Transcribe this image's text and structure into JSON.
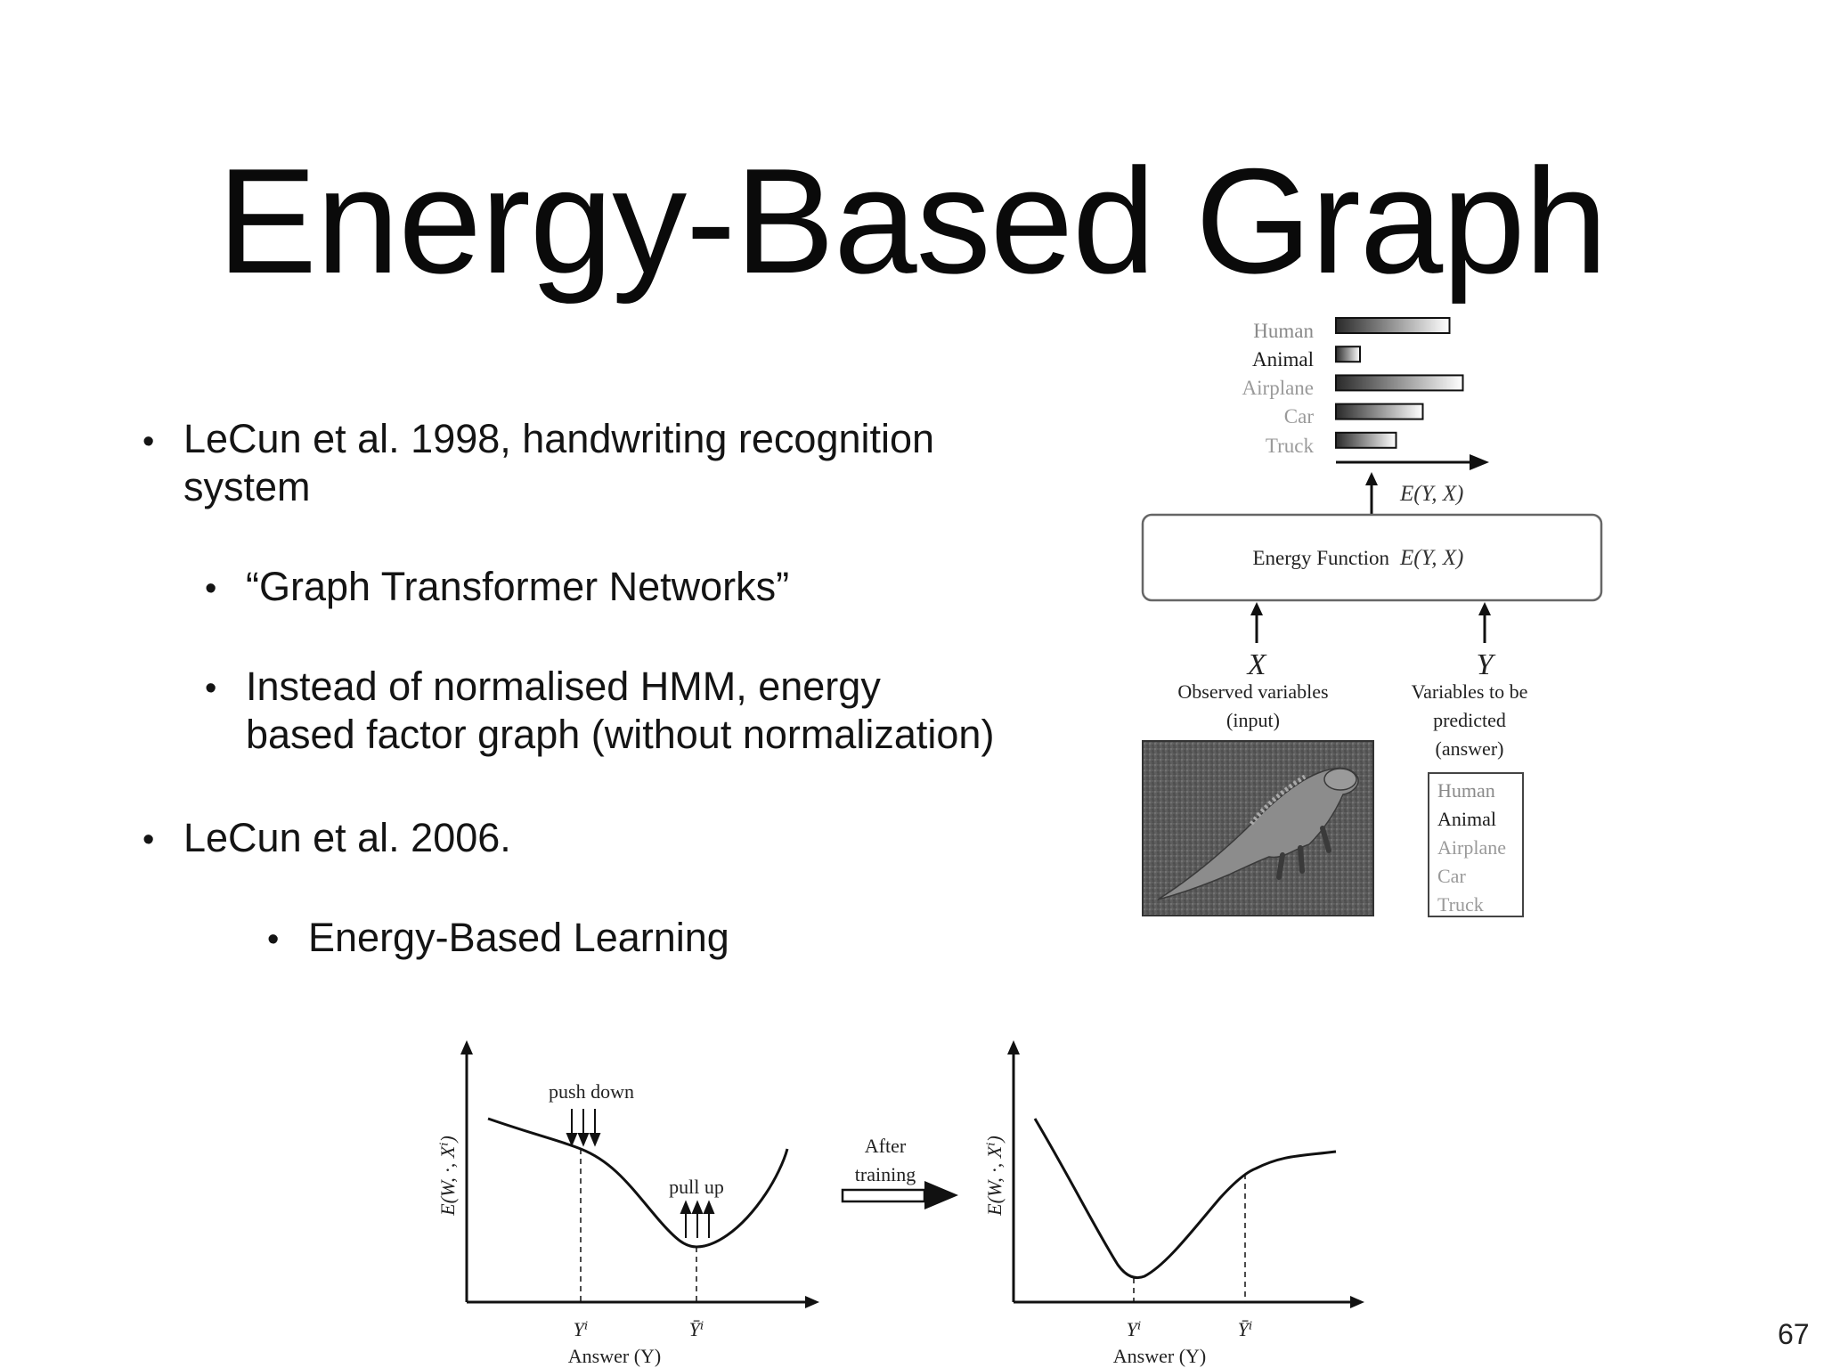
{
  "slide": {
    "title": "Energy-Based Graph",
    "page_number": "67"
  },
  "bullets": [
    {
      "level": 1,
      "lines": [
        "LeCun et al. 1998, handwriting recognition",
        "system"
      ]
    },
    {
      "level": 2,
      "lines": [
        "“Graph Transformer Networks”"
      ]
    },
    {
      "level": 2,
      "lines": [
        "Instead of normalised HMM, energy",
        "based factor graph (without normalization)"
      ]
    },
    {
      "level": 1,
      "lines": [
        "LeCun et al. 2006."
      ]
    },
    {
      "level": 3,
      "lines": [
        "Energy-Based Learning"
      ]
    }
  ],
  "diagram": {
    "bar_labels": [
      "Human",
      "Animal",
      "Airplane",
      "Car",
      "Truck"
    ],
    "bar_values": [
      0.85,
      0.18,
      0.95,
      0.65,
      0.45
    ],
    "energy_output_label": "E(Y, X)",
    "energy_box_label": "Energy Function",
    "energy_box_formula": "E(Y, X)",
    "x_symbol": "X",
    "y_symbol": "Y",
    "x_caption": [
      "Observed variables",
      "(input)"
    ],
    "y_caption": [
      "Variables to be",
      "predicted",
      "(answer)"
    ],
    "answer_list": [
      "Human",
      "Animal",
      "Airplane",
      "Car",
      "Truck"
    ]
  },
  "training_plots": {
    "y_axis_label": "E(W, ·, Xⁱ)",
    "x_axis_label": "Answer (Y)",
    "tick_yi": "Yⁱ",
    "tick_ybar": "Ȳⁱ",
    "push_down_label": "push down",
    "pull_up_label": "pull up",
    "transition_label": [
      "After",
      "training"
    ]
  }
}
